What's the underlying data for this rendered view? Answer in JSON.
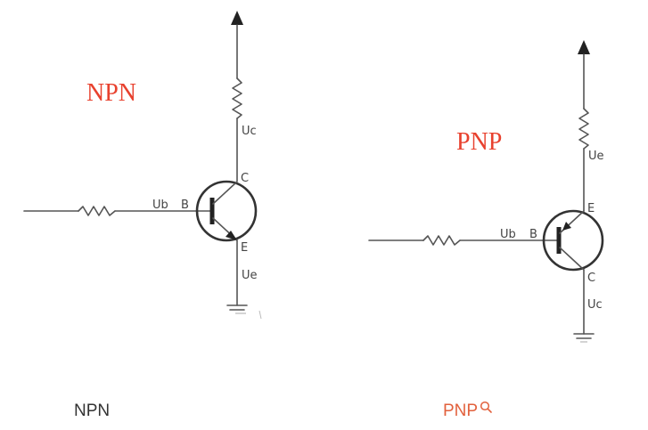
{
  "diagram": {
    "npn": {
      "title": "NPN",
      "labels": {
        "collector_voltage": "Uc",
        "base_voltage": "Ub",
        "base": "B",
        "collector": "C",
        "emitter": "E",
        "emitter_voltage": "Ue"
      }
    },
    "pnp": {
      "title": "PNP",
      "labels": {
        "emitter_voltage": "Ue",
        "base_voltage": "Ub",
        "base": "B",
        "emitter": "E",
        "collector": "C",
        "collector_voltage": "Uc"
      }
    }
  },
  "captions": {
    "npn": "NPN",
    "pnp": "PNP"
  },
  "colors": {
    "title": "#e8412e",
    "wire": "#555555",
    "caption_link": "#e2613d"
  },
  "icons": {
    "caption_search": "search-icon"
  }
}
